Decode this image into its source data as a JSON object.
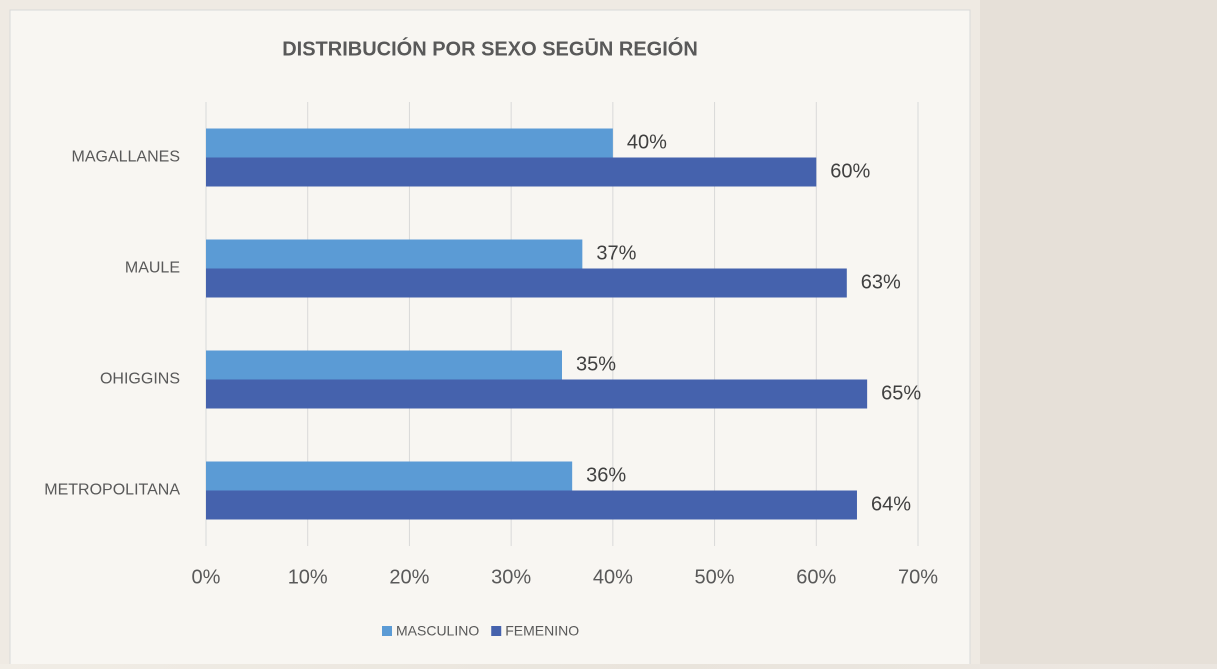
{
  "chart_data": {
    "type": "hbar",
    "title": "DISTRIBUCIÓN POR SEXO SEGŪN REGIÓN",
    "categories": [
      "MAGALLANES",
      "MAULE",
      "OHIGGINS",
      "METROPOLITANA"
    ],
    "series": [
      {
        "name": "MASCULINO",
        "color": "#5b9bd5",
        "values": [
          40,
          37,
          35,
          36
        ],
        "value_labels": [
          "40%",
          "37%",
          "35%",
          "36%"
        ]
      },
      {
        "name": "FEMENINO",
        "color": "#4562ad",
        "values": [
          60,
          63,
          65,
          64
        ],
        "value_labels": [
          "60%",
          "63%",
          "65%",
          "64%"
        ]
      }
    ],
    "xlim": [
      0,
      70
    ],
    "xticks": [
      {
        "value": 0,
        "label": "0%"
      },
      {
        "value": 10,
        "label": "10%"
      },
      {
        "value": 20,
        "label": "20%"
      },
      {
        "value": 30,
        "label": "30%"
      },
      {
        "value": 40,
        "label": "40%"
      },
      {
        "value": 50,
        "label": "50%"
      },
      {
        "value": 60,
        "label": "60%"
      },
      {
        "value": 70,
        "label": "70%"
      }
    ],
    "grid": true,
    "legend": "bottom"
  }
}
